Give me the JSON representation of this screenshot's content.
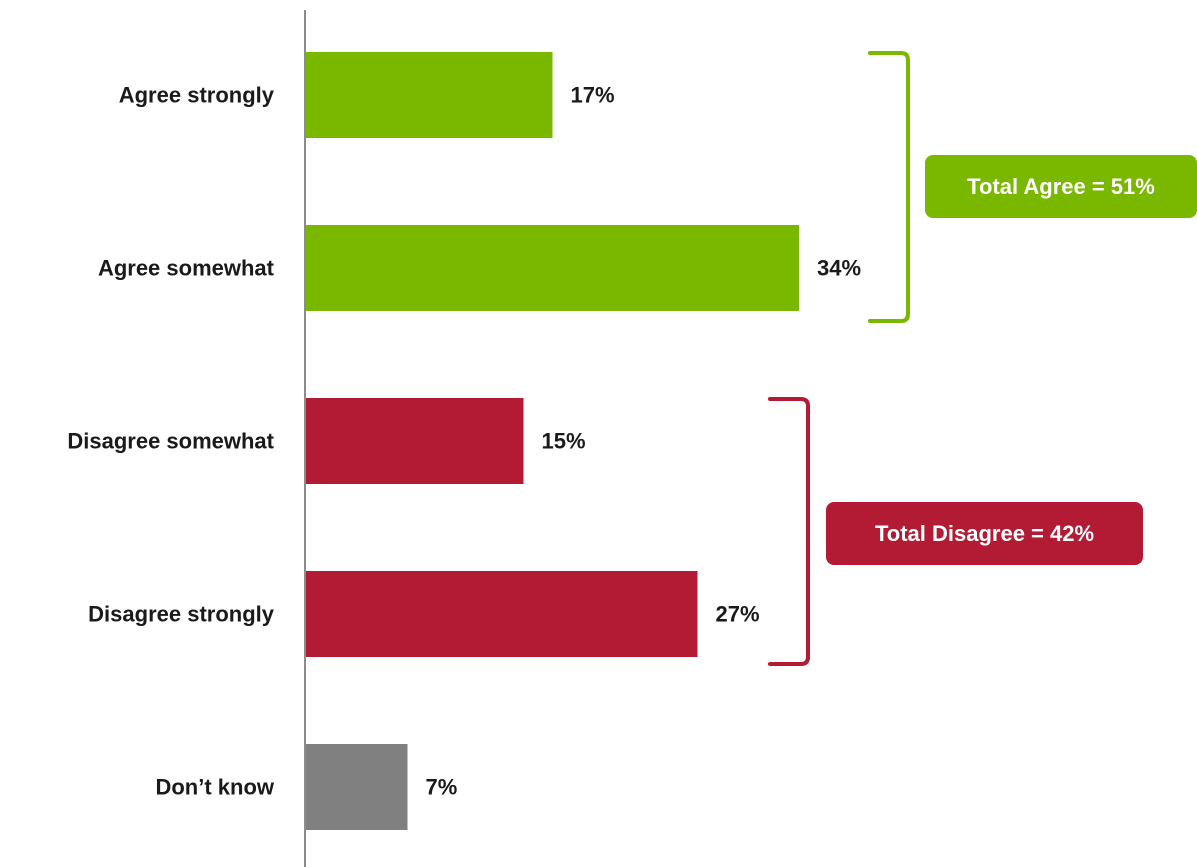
{
  "chart_data": {
    "type": "bar",
    "orientation": "horizontal",
    "title": "",
    "xlabel": "",
    "ylabel": "",
    "categories": [
      "Agree strongly",
      "Agree somewhat",
      "Disagree somewhat",
      "Disagree strongly",
      "Don’t know"
    ],
    "values": [
      17,
      34,
      15,
      27,
      7
    ],
    "value_labels": [
      "17%",
      "34%",
      "15%",
      "27%",
      "7%"
    ],
    "unit": "%",
    "xlim": [
      0,
      100
    ],
    "grid": false,
    "legend": "none",
    "colors": [
      "#7AB800",
      "#7AB800",
      "#B31B34",
      "#B31B34",
      "#808080"
    ],
    "annotations": [
      {
        "text": "Total Agree = 51%",
        "color": "#7AB800",
        "spans": [
          0,
          1
        ]
      },
      {
        "text": "Total Disagree = 42%",
        "color": "#B31B34",
        "spans": [
          2,
          3
        ]
      }
    ]
  }
}
